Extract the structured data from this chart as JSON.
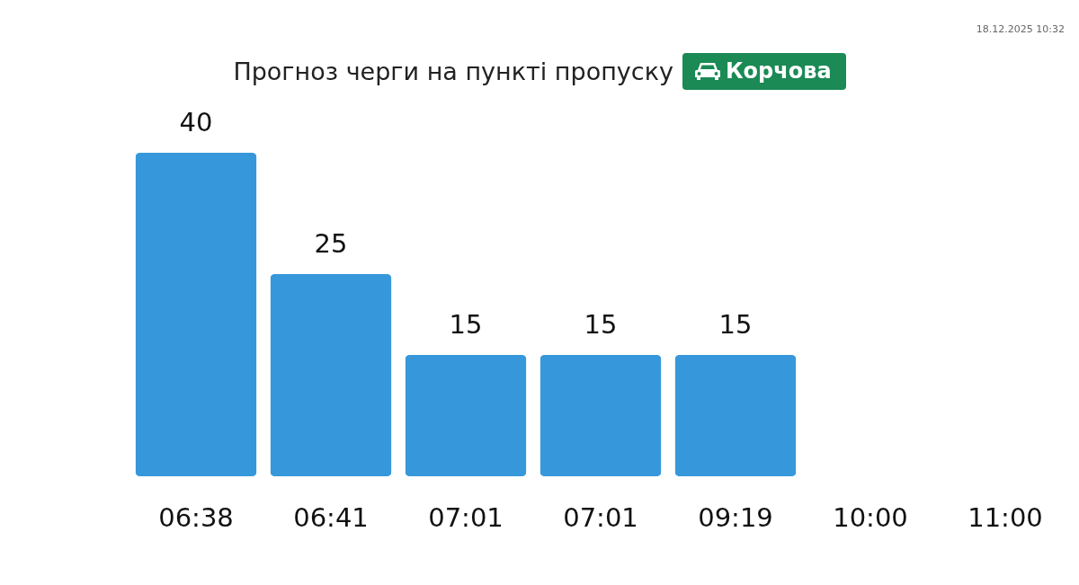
{
  "chart_data": {
    "type": "bar",
    "title": "Прогноз черги на пункті пропуску",
    "subtitle": "Корчова",
    "annotations": [
      "18.12.2025 10:32"
    ],
    "categories": [
      "06:38",
      "06:41",
      "07:01",
      "07:01",
      "09:19",
      "10:00",
      "11:00"
    ],
    "values": [
      40,
      25,
      15,
      15,
      15,
      null,
      null
    ],
    "color": "#3698db",
    "data_labels": true
  }
}
